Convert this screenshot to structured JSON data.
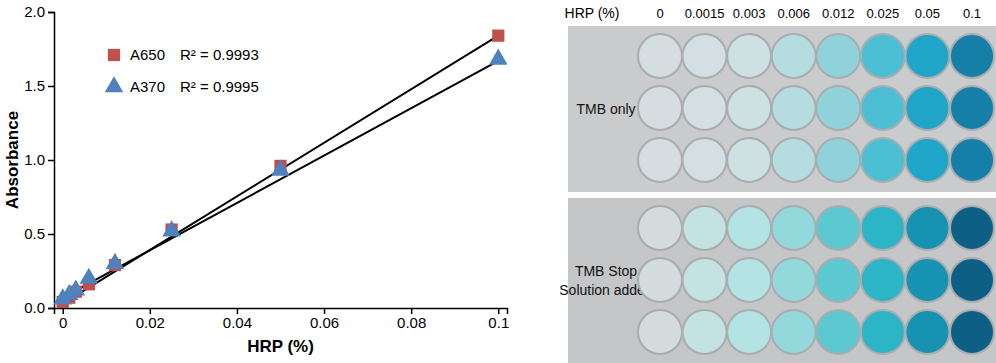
{
  "chart_data": {
    "type": "scatter",
    "xlabel": "HRP (%)",
    "ylabel": "Absorbance",
    "x": [
      0,
      0.0015,
      0.003,
      0.006,
      0.012,
      0.025,
      0.05,
      0.1
    ],
    "xlim": [
      -0.002,
      0.102
    ],
    "xticks": [
      0,
      0.02,
      0.04,
      0.06,
      0.08,
      0.1
    ],
    "ylim": [
      0,
      2
    ],
    "yticks": [
      {
        "value": 0,
        "label": "0.0"
      },
      0.5,
      {
        "value": 1,
        "label": "1.0"
      },
      1.5,
      {
        "value": 2,
        "label": "2.0"
      }
    ],
    "legend": "upper left",
    "series": [
      {
        "name": "A650",
        "color": "#c0504d",
        "marker": "square",
        "r_squared_label": "R² = 0.9993",
        "values": [
          0.04,
          0.07,
          0.11,
          0.16,
          0.29,
          0.53,
          0.96,
          1.84
        ],
        "trendline": {
          "x": [
            0,
            0.1
          ],
          "values": [
            0.03,
            1.84
          ]
        }
      },
      {
        "name": "A370",
        "color": "#4f81bd",
        "marker": "triangle",
        "r_squared_label": "R² = 0.9995",
        "values": [
          0.06,
          0.09,
          0.12,
          0.2,
          0.3,
          0.52,
          0.93,
          1.68
        ],
        "trendline": {
          "x": [
            0,
            0.1
          ],
          "values": [
            0.07,
            1.67
          ]
        }
      }
    ]
  },
  "plate": {
    "header": "HRP (%)",
    "columns": [
      0,
      0.0015,
      0.003,
      0.006,
      0.012,
      0.025,
      0.05,
      0.1
    ],
    "blocks": [
      {
        "label": [
          "TMB only"
        ],
        "colors": [
          "#d6dde0",
          "#d3dfe2",
          "#cde0e2",
          "#b5dde0",
          "#8fd2da",
          "#4cbfd4",
          "#1ea5c8",
          "#157fa8"
        ]
      },
      {
        "label": [
          "TMB Stop",
          "Solution added"
        ],
        "colors": [
          "#d4dcde",
          "#c5e2e2",
          "#b4e3e3",
          "#93d9dc",
          "#5cc8cf",
          "#2bb5c7",
          "#1792b0",
          "#0d5f86"
        ]
      }
    ]
  }
}
